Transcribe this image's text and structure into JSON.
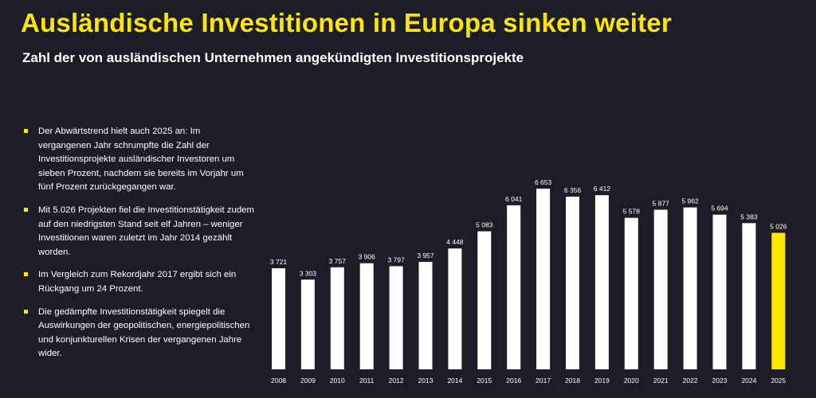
{
  "header": {
    "title": "Ausländische Investitionen in Europa sinken weiter",
    "subtitle": "Zahl der von ausländischen Unternehmen angekündigten Investitionsprojekte"
  },
  "bullets": [
    "Der Abwärtstrend hielt auch 2025 an: Im vergangenen Jahr schrumpfte die Zahl der Investitionsprojekte ausländischer Investoren um sieben Prozent, nachdem sie bereits im Vorjahr um fünf Prozent zurückgegangen war.",
    "Mit 5.026 Projekten fiel die Investitionstätigkeit zudem auf den niedrigsten Stand seit elf Jahren – weniger Investitionen waren zuletzt im Jahr 2014 gezählt worden.",
    "Im Vergleich zum Rekordjahr 2017 ergibt sich ein Rückgang um 24 Prozent.",
    "Die gedämpfte Investitionstätigkeit spiegelt die Auswirkungen der geopolitischen, energiepolitischen und konjunkturellen Krisen der vergangenen Jahre wider."
  ],
  "colors": {
    "background": "#1d1d27",
    "accent": "#ffe600",
    "bar": "#ffffff",
    "highlight_bar": "#ffe600",
    "text": "#ffffff"
  },
  "chart_data": {
    "type": "bar",
    "categories": [
      "2008",
      "2009",
      "2010",
      "2011",
      "2012",
      "2013",
      "2014",
      "2015",
      "2016",
      "2017",
      "2018",
      "2019",
      "2020",
      "2021",
      "2022",
      "2023",
      "2024",
      "2025"
    ],
    "values": [
      3721,
      3303,
      3757,
      3906,
      3797,
      3957,
      4448,
      5083,
      6041,
      6653,
      6356,
      6412,
      5578,
      5877,
      5962,
      5694,
      5383,
      5026
    ],
    "data_labels": [
      "3 721",
      "3 303",
      "3 757",
      "3 906",
      "3 797",
      "3 957",
      "4 448",
      "5 083",
      "6 041",
      "6 653",
      "6 356",
      "6 412",
      "5 578",
      "5 877",
      "5 962",
      "5 694",
      "5 383",
      "5 026"
    ],
    "highlight_category": "2025",
    "title": "",
    "xlabel": "",
    "ylabel": "",
    "ylim": [
      0,
      7000
    ],
    "grid": false,
    "legend": "none"
  }
}
